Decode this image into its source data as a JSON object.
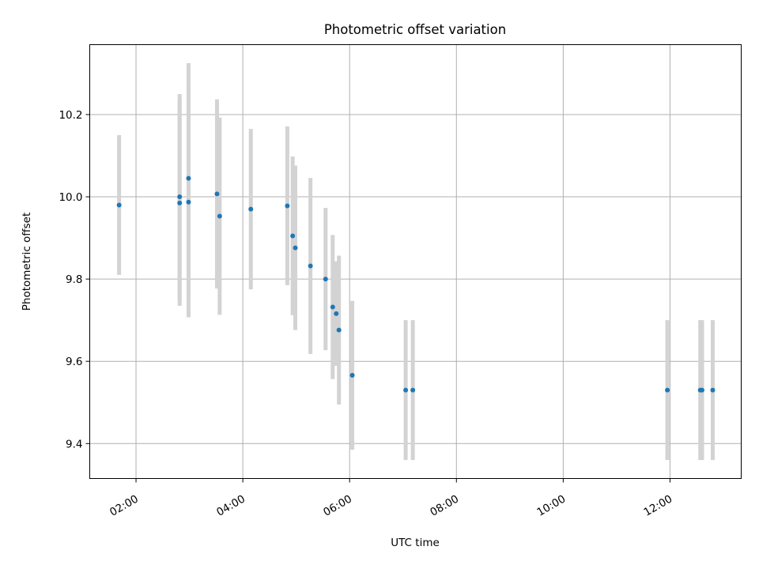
{
  "chart_data": {
    "type": "scatter",
    "title": "Photometric offset variation",
    "xlabel": "UTC time",
    "ylabel": "Photometric offset",
    "x_axis_kind": "time",
    "x_tick_labels": [
      "02:00",
      "04:00",
      "06:00",
      "08:00",
      "10:00",
      "12:00"
    ],
    "x_ticks": [
      "02:00",
      "04:00",
      "06:00",
      "08:00",
      "10:00",
      "12:00"
    ],
    "y_ticks": [
      9.4,
      9.6,
      9.8,
      10.0,
      10.2
    ],
    "y_tick_labels": [
      "9.4",
      "9.6",
      "9.8",
      "10.0",
      "10.2"
    ],
    "xlim": [
      "01:08",
      "13:20"
    ],
    "ylim": [
      9.315,
      10.37
    ],
    "grid": true,
    "series": [
      {
        "marker_color": "#1f77b4",
        "errorbar_color": "#d3d3d3",
        "points": [
          {
            "x": "01:41",
            "y": 9.98,
            "yerr": 0.17
          },
          {
            "x": "02:49",
            "y": 10.0,
            "yerr": 0.25
          },
          {
            "x": "02:49",
            "y": 9.985,
            "yerr": 0.25
          },
          {
            "x": "02:59",
            "y": 10.045,
            "yerr": 0.28
          },
          {
            "x": "02:59",
            "y": 9.987,
            "yerr": 0.28
          },
          {
            "x": "03:31",
            "y": 10.007,
            "yerr": 0.23
          },
          {
            "x": "03:34",
            "y": 9.953,
            "yerr": 0.24
          },
          {
            "x": "04:09",
            "y": 9.97,
            "yerr": 0.195
          },
          {
            "x": "04:50",
            "y": 9.978,
            "yerr": 0.193
          },
          {
            "x": "04:56",
            "y": 9.905,
            "yerr": 0.193
          },
          {
            "x": "04:59",
            "y": 9.876,
            "yerr": 0.2
          },
          {
            "x": "05:16",
            "y": 9.832,
            "yerr": 0.214
          },
          {
            "x": "05:33",
            "y": 9.8,
            "yerr": 0.173
          },
          {
            "x": "05:41",
            "y": 9.732,
            "yerr": 0.175
          },
          {
            "x": "05:45",
            "y": 9.716,
            "yerr": 0.127
          },
          {
            "x": "05:48",
            "y": 9.676,
            "yerr": 0.181
          },
          {
            "x": "06:03",
            "y": 9.566,
            "yerr": 0.181
          },
          {
            "x": "07:03",
            "y": 9.53,
            "yerr": 0.17
          },
          {
            "x": "07:11",
            "y": 9.53,
            "yerr": 0.17
          },
          {
            "x": "11:57",
            "y": 9.53,
            "yerr": 0.17
          },
          {
            "x": "12:34",
            "y": 9.53,
            "yerr": 0.17
          },
          {
            "x": "12:36",
            "y": 9.53,
            "yerr": 0.17
          },
          {
            "x": "12:48",
            "y": 9.53,
            "yerr": 0.17
          }
        ]
      }
    ]
  }
}
